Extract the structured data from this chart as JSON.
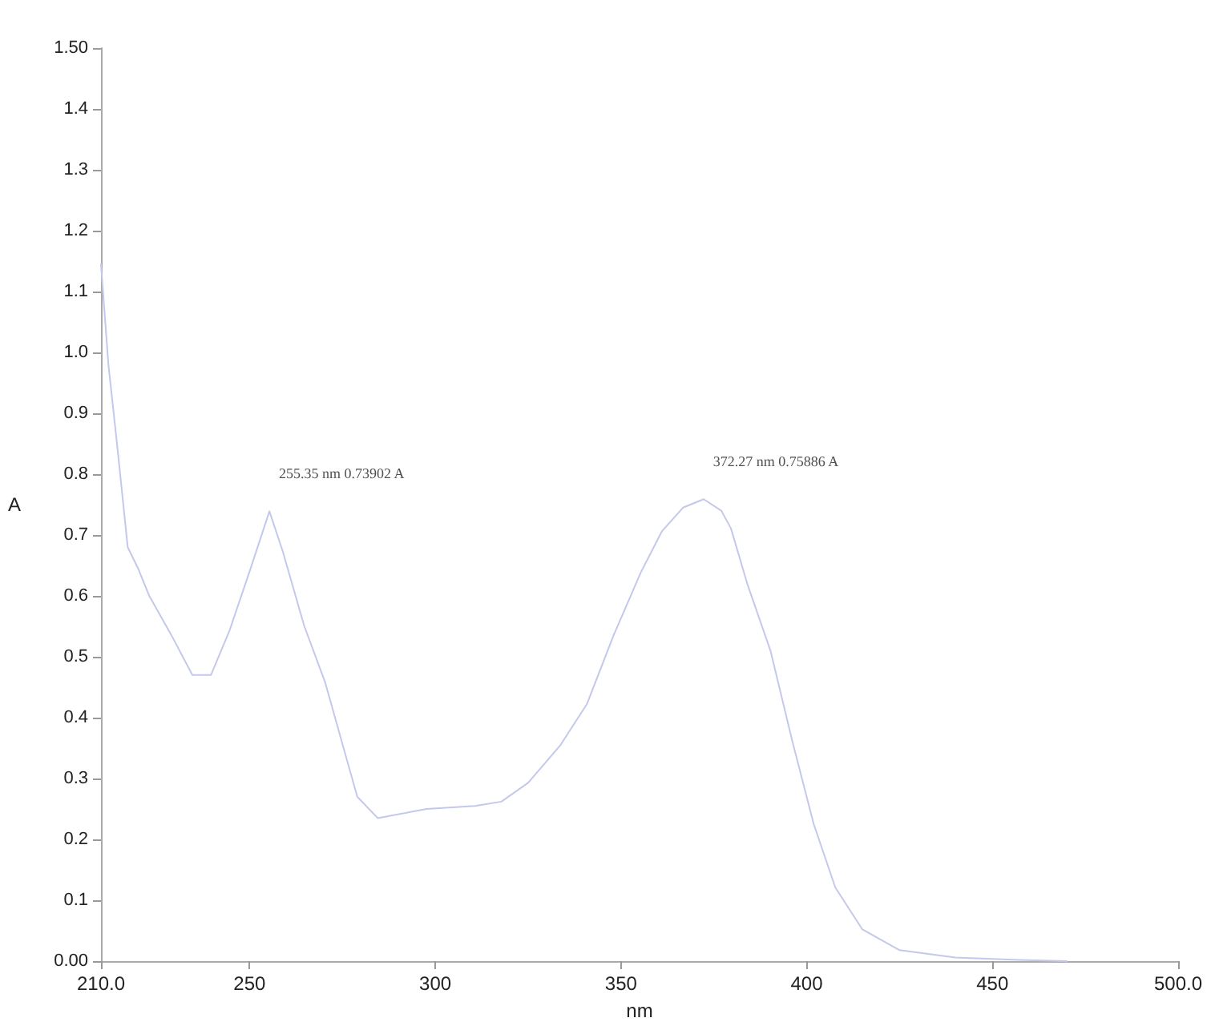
{
  "chart_data": {
    "type": "line",
    "xlabel": "nm",
    "ylabel": "A",
    "x": [
      210,
      212,
      214.4,
      217.2,
      220,
      223,
      229,
      234.6,
      239.6,
      244.6,
      250,
      255.35,
      259,
      264.7,
      270.4,
      279,
      284.5,
      297.7,
      310.7,
      317.8,
      325,
      333.6,
      340.8,
      348,
      355.3,
      361,
      366.7,
      372.27,
      377,
      379.6,
      384,
      390.3,
      396.1,
      401.9,
      407.7,
      415,
      425,
      440,
      457,
      470
    ],
    "series": [
      {
        "color": "#c4c8ea",
        "values": [
          1.145,
          0.98,
          0.845,
          0.68,
          0.645,
          0.6,
          0.535,
          0.47,
          0.47,
          0.543,
          0.64,
          0.739,
          0.672,
          0.551,
          0.457,
          0.27,
          0.235,
          0.25,
          0.255,
          0.262,
          0.293,
          0.354,
          0.422,
          0.535,
          0.638,
          0.706,
          0.745,
          0.75886,
          0.74,
          0.711,
          0.62,
          0.509,
          0.362,
          0.225,
          0.121,
          0.052,
          0.018,
          0.006,
          0.002,
          0
        ]
      }
    ],
    "xlim": [
      210,
      500
    ],
    "xticks": [
      {
        "value": 210,
        "label": "210.0"
      },
      250,
      300,
      350,
      400,
      450,
      {
        "value": 500,
        "label": "500.0"
      }
    ],
    "ylim": [
      0,
      1.5
    ],
    "yticks": [
      {
        "value": 0,
        "label": "0.00"
      },
      0.1,
      0.2,
      0.3,
      0.4,
      0.5,
      0.6,
      0.7,
      0.8,
      0.9,
      {
        "value": 1,
        "label": "1.0"
      },
      1.1,
      1.2,
      1.3,
      1.4,
      {
        "value": 1.5,
        "label": "1.50"
      }
    ],
    "annotations": [
      {
        "text": "255.35 nm 0.73902 A",
        "x": 255.35,
        "y": 0.73902
      },
      {
        "text": "372.27 nm 0.75886 A",
        "x": 372.27,
        "y": 0.75886
      }
    ],
    "grid": false,
    "marker": "none",
    "line_style": "solid"
  }
}
